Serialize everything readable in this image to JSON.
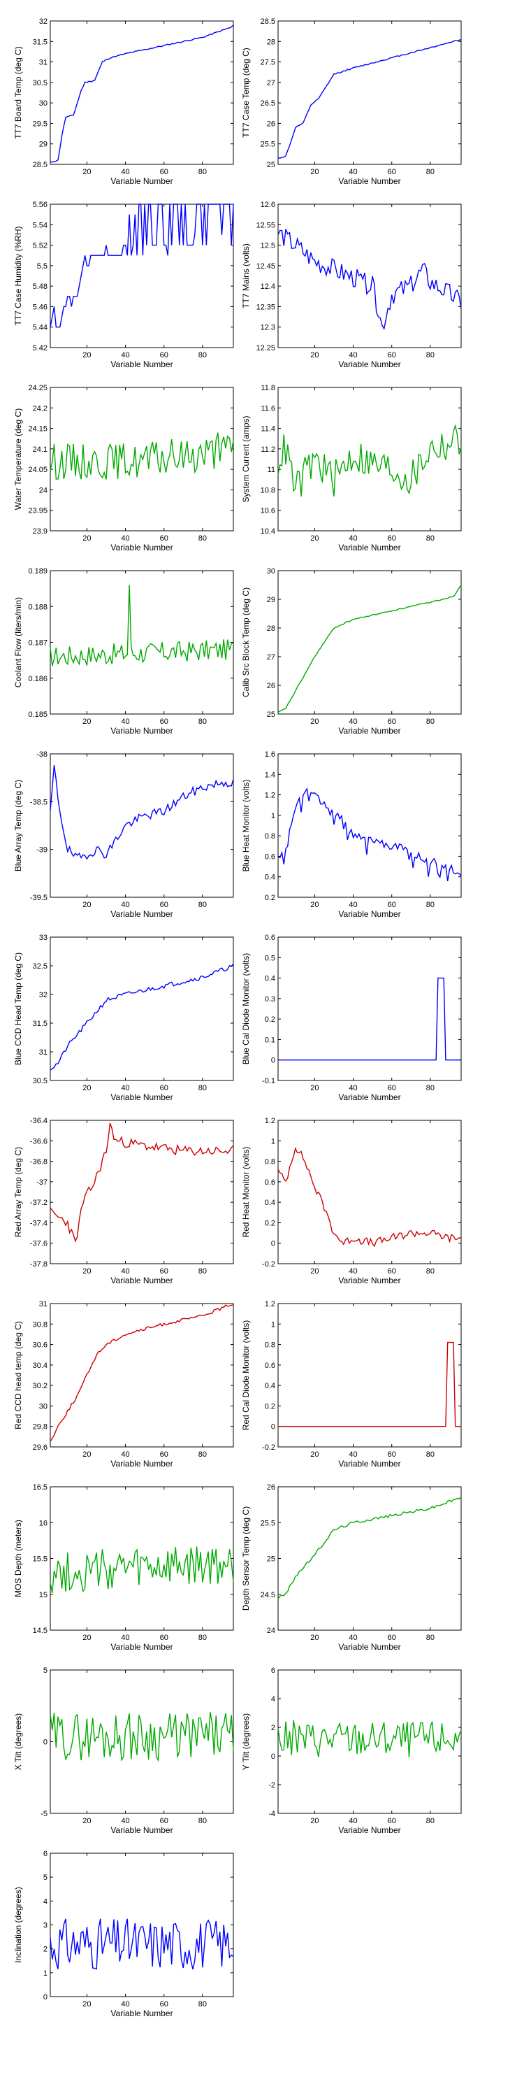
{
  "chart_data": [
    {
      "type": "line",
      "ylabel": "TT7 Board Temp (deg C)",
      "xlabel": "Variable Number",
      "color": "#0000ff",
      "xlim": [
        1,
        96
      ],
      "ylim": [
        28.5,
        32
      ],
      "xticks": [
        20,
        40,
        60,
        80
      ],
      "yticks": [
        28.5,
        29,
        29.5,
        30,
        30.5,
        31,
        31.5,
        32
      ],
      "knots": [
        [
          1,
          28.55
        ],
        [
          5,
          28.6
        ],
        [
          7,
          29.2
        ],
        [
          9,
          29.65
        ],
        [
          13,
          29.7
        ],
        [
          17,
          30.3
        ],
        [
          19,
          30.5
        ],
        [
          24,
          30.55
        ],
        [
          28,
          31.0
        ],
        [
          32,
          31.1
        ],
        [
          40,
          31.2
        ],
        [
          60,
          31.4
        ],
        [
          80,
          31.6
        ],
        [
          95,
          31.85
        ],
        [
          96,
          31.9
        ]
      ],
      "noise": 0.015,
      "seed": 11
    },
    {
      "type": "line",
      "ylabel": "TT7 Case Temp (deg C)",
      "xlabel": "Variable Number",
      "color": "#0000ff",
      "xlim": [
        1,
        96
      ],
      "ylim": [
        25,
        28.5
      ],
      "xticks": [
        20,
        40,
        60,
        80
      ],
      "yticks": [
        25,
        25.5,
        26,
        26.5,
        27,
        27.5,
        28,
        28.5
      ],
      "knots": [
        [
          1,
          25.15
        ],
        [
          5,
          25.2
        ],
        [
          8,
          25.6
        ],
        [
          10,
          25.9
        ],
        [
          14,
          26.0
        ],
        [
          18,
          26.45
        ],
        [
          22,
          26.6
        ],
        [
          26,
          26.9
        ],
        [
          30,
          27.2
        ],
        [
          40,
          27.35
        ],
        [
          60,
          27.6
        ],
        [
          80,
          27.85
        ],
        [
          96,
          28.05
        ]
      ],
      "noise": 0.015,
      "seed": 12
    },
    {
      "type": "line",
      "ylabel": "TT7 Case Humidity (%RH)",
      "xlabel": "Variable Number",
      "color": "#0000ff",
      "xlim": [
        1,
        96
      ],
      "ylim": [
        5.42,
        5.56
      ],
      "xticks": [
        20,
        40,
        60,
        80
      ],
      "yticks": [
        5.42,
        5.44,
        5.46,
        5.48,
        5.5,
        5.52,
        5.54,
        5.56
      ],
      "knots": [
        [
          1,
          5.435
        ],
        [
          3,
          5.455
        ],
        [
          4,
          5.44
        ],
        [
          6,
          5.44
        ],
        [
          8,
          5.46
        ],
        [
          15,
          5.47
        ],
        [
          18,
          5.5
        ],
        [
          22,
          5.51
        ],
        [
          40,
          5.515
        ],
        [
          96,
          5.525
        ]
      ],
      "noise": 0.004,
      "seed": 13,
      "step": 0.01,
      "spikes": 0.55
    },
    {
      "type": "line",
      "ylabel": "TT7 Mains  (volts)",
      "xlabel": "Variable Number",
      "color": "#0000ff",
      "xlim": [
        1,
        96
      ],
      "ylim": [
        12.25,
        12.6
      ],
      "xticks": [
        20,
        40,
        60,
        80
      ],
      "yticks": [
        12.25,
        12.3,
        12.35,
        12.4,
        12.45,
        12.5,
        12.55,
        12.6
      ],
      "knots": [
        [
          1,
          12.53
        ],
        [
          10,
          12.5
        ],
        [
          20,
          12.46
        ],
        [
          30,
          12.44
        ],
        [
          40,
          12.42
        ],
        [
          50,
          12.4
        ],
        [
          55,
          12.3
        ],
        [
          60,
          12.38
        ],
        [
          70,
          12.4
        ],
        [
          76,
          12.44
        ],
        [
          80,
          12.41
        ],
        [
          90,
          12.38
        ],
        [
          96,
          12.36
        ]
      ],
      "noise": 0.025,
      "seed": 14
    },
    {
      "type": "line",
      "ylabel": "Water Temperature (deg C)",
      "xlabel": "Variable Number",
      "color": "#00aa00",
      "xlim": [
        1,
        96
      ],
      "ylim": [
        23.9,
        24.25
      ],
      "xticks": [
        20,
        40,
        60,
        80
      ],
      "yticks": [
        23.9,
        23.95,
        24,
        24.05,
        24.1,
        24.15,
        24.2,
        24.25
      ],
      "knots": [
        [
          1,
          24.07
        ],
        [
          50,
          24.07
        ],
        [
          96,
          24.1
        ]
      ],
      "noise": 0.045,
      "seed": 15
    },
    {
      "type": "line",
      "ylabel": "System Current (amps)",
      "xlabel": "Variable Number",
      "color": "#00aa00",
      "xlim": [
        1,
        96
      ],
      "ylim": [
        10.4,
        11.8
      ],
      "xticks": [
        20,
        40,
        60,
        80
      ],
      "yticks": [
        10.4,
        10.6,
        10.8,
        11,
        11.2,
        11.4,
        11.6,
        11.8
      ],
      "knots": [
        [
          1,
          11.1
        ],
        [
          5,
          11.2
        ],
        [
          10,
          10.8
        ],
        [
          20,
          11.1
        ],
        [
          30,
          10.9
        ],
        [
          40,
          11.15
        ],
        [
          50,
          11.05
        ],
        [
          60,
          11.0
        ],
        [
          70,
          10.9
        ],
        [
          80,
          11.2
        ],
        [
          90,
          11.25
        ],
        [
          96,
          11.3
        ]
      ],
      "noise": 0.18,
      "seed": 16
    },
    {
      "type": "line",
      "ylabel": "Coolant Flow (liters/min)",
      "xlabel": "Variable Number",
      "color": "#00aa00",
      "xlim": [
        1,
        96
      ],
      "ylim": [
        0.185,
        0.189
      ],
      "xticks": [
        20,
        40,
        60,
        80
      ],
      "yticks": [
        0.185,
        0.186,
        0.187,
        0.188,
        0.189
      ],
      "knots": [
        [
          1,
          0.1866
        ],
        [
          96,
          0.1868
        ]
      ],
      "noise": 0.0003,
      "seed": 17,
      "peak": [
        42,
        0.1886
      ]
    },
    {
      "type": "line",
      "ylabel": "Calib Src Block Temp (deg C)",
      "xlabel": "Variable Number",
      "color": "#00aa00",
      "xlim": [
        1,
        96
      ],
      "ylim": [
        25,
        30
      ],
      "xticks": [
        20,
        40,
        60,
        80
      ],
      "yticks": [
        25,
        26,
        27,
        28,
        29,
        30
      ],
      "knots": [
        [
          1,
          25.05
        ],
        [
          5,
          25.2
        ],
        [
          10,
          25.8
        ],
        [
          15,
          26.4
        ],
        [
          20,
          27.0
        ],
        [
          25,
          27.5
        ],
        [
          30,
          28.0
        ],
        [
          40,
          28.3
        ],
        [
          60,
          28.6
        ],
        [
          80,
          28.9
        ],
        [
          92,
          29.1
        ],
        [
          96,
          29.5
        ]
      ],
      "noise": 0.02,
      "seed": 18
    },
    {
      "type": "line",
      "ylabel": "Blue Array Temp (deg C)",
      "xlabel": "Variable Number",
      "color": "#0000ff",
      "xlim": [
        1,
        96
      ],
      "ylim": [
        -39.5,
        -38
      ],
      "xticks": [
        20,
        40,
        60,
        80
      ],
      "yticks": [
        -39.5,
        -39,
        -38.5,
        -38
      ],
      "knots": [
        [
          1,
          -38.6
        ],
        [
          3,
          -38.15
        ],
        [
          6,
          -38.6
        ],
        [
          10,
          -39.0
        ],
        [
          15,
          -39.1
        ],
        [
          20,
          -39.05
        ],
        [
          25,
          -39.0
        ],
        [
          30,
          -39.05
        ],
        [
          35,
          -38.9
        ],
        [
          40,
          -38.75
        ],
        [
          50,
          -38.65
        ],
        [
          60,
          -38.6
        ],
        [
          70,
          -38.45
        ],
        [
          80,
          -38.35
        ],
        [
          90,
          -38.3
        ],
        [
          96,
          -38.3
        ]
      ],
      "noise": 0.05,
      "seed": 19
    },
    {
      "type": "line",
      "ylabel": "Blue Heat Monitor (volts)",
      "xlabel": "Variable Number",
      "color": "#0000ff",
      "xlim": [
        1,
        96
      ],
      "ylim": [
        0.2,
        1.6
      ],
      "xticks": [
        20,
        40,
        60,
        80
      ],
      "yticks": [
        0.2,
        0.4,
        0.6,
        0.8,
        1,
        1.2,
        1.4,
        1.6
      ],
      "knots": [
        [
          1,
          0.6
        ],
        [
          5,
          0.7
        ],
        [
          10,
          1.1
        ],
        [
          15,
          1.25
        ],
        [
          20,
          1.2
        ],
        [
          25,
          1.1
        ],
        [
          30,
          1.0
        ],
        [
          35,
          0.95
        ],
        [
          40,
          0.8
        ],
        [
          50,
          0.75
        ],
        [
          60,
          0.7
        ],
        [
          70,
          0.65
        ],
        [
          80,
          0.55
        ],
        [
          90,
          0.5
        ],
        [
          96,
          0.4
        ]
      ],
      "noise": 0.04,
      "seed": 20,
      "dips": 0.08
    },
    {
      "type": "line",
      "ylabel": "Blue CCD Head Temp (deg C)",
      "xlabel": "Variable Number",
      "color": "#0000ff",
      "xlim": [
        1,
        96
      ],
      "ylim": [
        30.5,
        33
      ],
      "xticks": [
        20,
        40,
        60,
        80
      ],
      "yticks": [
        30.5,
        31,
        31.5,
        32,
        32.5,
        33
      ],
      "knots": [
        [
          1,
          30.7
        ],
        [
          5,
          30.8
        ],
        [
          10,
          31.1
        ],
        [
          20,
          31.5
        ],
        [
          30,
          31.9
        ],
        [
          40,
          32.0
        ],
        [
          60,
          32.15
        ],
        [
          80,
          32.3
        ],
        [
          96,
          32.5
        ]
      ],
      "noise": 0.04,
      "seed": 21
    },
    {
      "type": "line",
      "ylabel": "Blue Cal Diode Monitor (volts)",
      "xlabel": "Variable Number",
      "color": "#0000ff",
      "xlim": [
        1,
        96
      ],
      "ylim": [
        -0.1,
        0.6
      ],
      "xticks": [
        20,
        40,
        60,
        80
      ],
      "yticks": [
        -0.1,
        0,
        0.1,
        0.2,
        0.3,
        0.4,
        0.5,
        0.6
      ],
      "knots": [
        [
          1,
          0
        ],
        [
          96,
          0
        ]
      ],
      "noise": 0.002,
      "seed": 22,
      "pulse": [
        84,
        87,
        0.4
      ]
    },
    {
      "type": "line",
      "ylabel": "Red Array Temp (deg C)",
      "xlabel": "Variable Number",
      "color": "#cc0000",
      "xlim": [
        1,
        96
      ],
      "ylim": [
        -37.8,
        -36.4
      ],
      "xticks": [
        20,
        40,
        60,
        80
      ],
      "yticks": [
        -37.8,
        -37.6,
        -37.4,
        -37.2,
        -37,
        -36.8,
        -36.6,
        -36.4
      ],
      "knots": [
        [
          1,
          -37.3
        ],
        [
          10,
          -37.4
        ],
        [
          14,
          -37.6
        ],
        [
          18,
          -37.2
        ],
        [
          24,
          -37.0
        ],
        [
          30,
          -36.7
        ],
        [
          32,
          -36.45
        ],
        [
          35,
          -36.6
        ],
        [
          50,
          -36.65
        ],
        [
          70,
          -36.7
        ],
        [
          96,
          -36.7
        ]
      ],
      "noise": 0.05,
      "seed": 23
    },
    {
      "type": "line",
      "ylabel": "Red Heat Monitor (volts)",
      "xlabel": "Variable Number",
      "color": "#cc0000",
      "xlim": [
        1,
        96
      ],
      "ylim": [
        -0.2,
        1.2
      ],
      "xticks": [
        20,
        40,
        60,
        80
      ],
      "yticks": [
        -0.2,
        0,
        0.2,
        0.4,
        0.6,
        0.8,
        1,
        1.2
      ],
      "knots": [
        [
          1,
          0.7
        ],
        [
          5,
          0.6
        ],
        [
          10,
          0.95
        ],
        [
          15,
          0.8
        ],
        [
          20,
          0.55
        ],
        [
          25,
          0.35
        ],
        [
          30,
          0.1
        ],
        [
          35,
          0.0
        ],
        [
          40,
          0.05
        ],
        [
          50,
          0.0
        ],
        [
          60,
          0.05
        ],
        [
          70,
          0.1
        ],
        [
          80,
          0.1
        ],
        [
          90,
          0.05
        ],
        [
          96,
          0.05
        ]
      ],
      "noise": 0.04,
      "seed": 24
    },
    {
      "type": "line",
      "ylabel": "Red CCD head temp (deg C)",
      "xlabel": "Variable Number",
      "color": "#cc0000",
      "xlim": [
        1,
        96
      ],
      "ylim": [
        29.6,
        31
      ],
      "xticks": [
        20,
        40,
        60,
        80
      ],
      "yticks": [
        29.6,
        29.8,
        30,
        30.2,
        30.4,
        30.6,
        30.8,
        31
      ],
      "knots": [
        [
          1,
          29.65
        ],
        [
          5,
          29.8
        ],
        [
          10,
          29.95
        ],
        [
          15,
          30.1
        ],
        [
          20,
          30.3
        ],
        [
          25,
          30.5
        ],
        [
          30,
          30.6
        ],
        [
          40,
          30.7
        ],
        [
          60,
          30.8
        ],
        [
          80,
          30.88
        ],
        [
          96,
          31.0
        ]
      ],
      "noise": 0.015,
      "seed": 25
    },
    {
      "type": "line",
      "ylabel": "Red Cal Diode Monitor (volts)",
      "xlabel": "Variable Number",
      "color": "#cc0000",
      "xlim": [
        1,
        96
      ],
      "ylim": [
        -0.2,
        1.2
      ],
      "xticks": [
        20,
        40,
        60,
        80
      ],
      "yticks": [
        -0.2,
        0,
        0.2,
        0.4,
        0.6,
        0.8,
        1,
        1.2
      ],
      "knots": [
        [
          1,
          0
        ],
        [
          96,
          0
        ]
      ],
      "noise": 0.002,
      "seed": 26,
      "pulse": [
        89,
        92,
        0.82
      ]
    },
    {
      "type": "line",
      "ylabel": "MOS Depth  (meters)",
      "xlabel": "Variable Number",
      "color": "#00aa00",
      "xlim": [
        1,
        96
      ],
      "ylim": [
        14.5,
        16.5
      ],
      "xticks": [
        20,
        40,
        60,
        80
      ],
      "yticks": [
        14.5,
        15,
        15.5,
        16,
        16.5
      ],
      "knots": [
        [
          1,
          15.3
        ],
        [
          96,
          15.4
        ]
      ],
      "noise": 0.3,
      "seed": 27
    },
    {
      "type": "line",
      "ylabel": "Depth Sensor Temp (deg C)",
      "xlabel": "Variable Number",
      "color": "#00aa00",
      "xlim": [
        1,
        96
      ],
      "ylim": [
        24,
        26
      ],
      "xticks": [
        20,
        40,
        60,
        80
      ],
      "yticks": [
        24,
        24.5,
        25,
        25.5,
        26
      ],
      "knots": [
        [
          1,
          24.45
        ],
        [
          5,
          24.5
        ],
        [
          10,
          24.75
        ],
        [
          20,
          25.05
        ],
        [
          30,
          25.4
        ],
        [
          40,
          25.5
        ],
        [
          60,
          25.6
        ],
        [
          80,
          25.7
        ],
        [
          96,
          25.85
        ]
      ],
      "noise": 0.02,
      "seed": 28
    },
    {
      "type": "line",
      "ylabel": "X Tilt  (degrees)",
      "xlabel": "Variable Number",
      "color": "#00aa00",
      "xlim": [
        1,
        96
      ],
      "ylim": [
        -5,
        5
      ],
      "xticks": [
        20,
        40,
        60,
        80
      ],
      "yticks": [
        -5,
        0,
        5
      ],
      "knots": [
        [
          1,
          0.4
        ],
        [
          96,
          0.4
        ]
      ],
      "noise": 1.7,
      "seed": 29
    },
    {
      "type": "line",
      "ylabel": "Y Tilt  (degrees)",
      "xlabel": "Variable Number",
      "color": "#00aa00",
      "xlim": [
        1,
        96
      ],
      "ylim": [
        -4,
        6
      ],
      "xticks": [
        20,
        40,
        60,
        80
      ],
      "yticks": [
        -4,
        -2,
        0,
        2,
        4,
        6
      ],
      "knots": [
        [
          1,
          1.2
        ],
        [
          96,
          1.2
        ]
      ],
      "noise": 1.3,
      "seed": 30
    },
    {
      "type": "line",
      "ylabel": "Inclination  (degrees)",
      "xlabel": "Variable Number",
      "color": "#0000ff",
      "xlim": [
        1,
        96
      ],
      "ylim": [
        0,
        6
      ],
      "xticks": [
        20,
        40,
        60,
        80
      ],
      "yticks": [
        0,
        1,
        2,
        3,
        4,
        5,
        6
      ],
      "knots": [
        [
          1,
          2.2
        ],
        [
          96,
          2.2
        ]
      ],
      "noise": 1.1,
      "seed": 31,
      "floor": 0.4
    }
  ]
}
